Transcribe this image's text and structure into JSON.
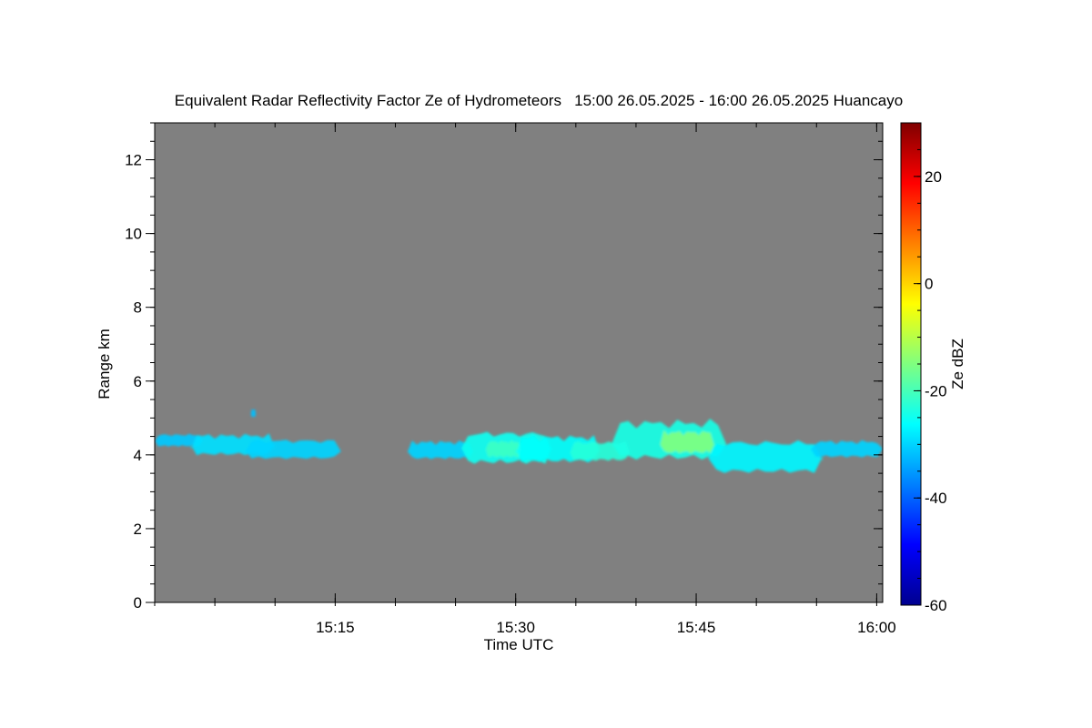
{
  "chart_data": {
    "type": "heatmap",
    "title": "Equivalent Radar Reflectivity Factor Ze of Hydrometeors   15:00 26.05.2025 - 16:00 26.05.2025 Huancayo",
    "xlabel": "Time UTC",
    "ylabel": "Range km",
    "colorbar_label": "Ze dBZ",
    "x_range_minutes": [
      0,
      60.5
    ],
    "x_ticks": [
      {
        "minute": 15,
        "label": "15:15"
      },
      {
        "minute": 30,
        "label": "15:30"
      },
      {
        "minute": 45,
        "label": "15:45"
      },
      {
        "minute": 60,
        "label": "16:00"
      }
    ],
    "ylim": [
      0,
      13
    ],
    "y_ticks": [
      0,
      2,
      4,
      6,
      8,
      10,
      12
    ],
    "clim": [
      -60,
      30
    ],
    "c_ticks": [
      -60,
      -40,
      -20,
      0,
      20
    ],
    "colormap": "jet",
    "background_color": "#808080",
    "echo_layers": [
      {
        "t_start": 0,
        "t_end": 4.0,
        "base_km": 4.2,
        "top_km": 4.65,
        "dbz": -31
      },
      {
        "t_start": 3.0,
        "t_end": 10.0,
        "base_km": 3.95,
        "top_km": 4.7,
        "dbz": -29
      },
      {
        "t_start": 7.5,
        "t_end": 15.5,
        "base_km": 3.85,
        "top_km": 4.55,
        "dbz": -30
      },
      {
        "t_start": 8.0,
        "t_end": 8.4,
        "base_km": 5.0,
        "top_km": 5.3,
        "dbz": -32
      },
      {
        "t_start": 21.0,
        "t_end": 26.5,
        "base_km": 3.85,
        "top_km": 4.5,
        "dbz": -30
      },
      {
        "t_start": 25.5,
        "t_end": 33.0,
        "base_km": 3.7,
        "top_km": 4.85,
        "dbz": -25
      },
      {
        "t_start": 27.5,
        "t_end": 30.5,
        "base_km": 3.9,
        "top_km": 4.5,
        "dbz": -21
      },
      {
        "t_start": 30.0,
        "t_end": 37.0,
        "base_km": 3.75,
        "top_km": 4.7,
        "dbz": -26
      },
      {
        "t_start": 34.5,
        "t_end": 39.5,
        "base_km": 3.8,
        "top_km": 4.5,
        "dbz": -23
      },
      {
        "t_start": 38.0,
        "t_end": 47.5,
        "base_km": 3.8,
        "top_km": 5.2,
        "dbz": -24
      },
      {
        "t_start": 42.0,
        "t_end": 46.5,
        "base_km": 4.0,
        "top_km": 4.8,
        "dbz": -15
      },
      {
        "t_start": 46.0,
        "t_end": 55.5,
        "base_km": 3.45,
        "top_km": 4.6,
        "dbz": -27
      },
      {
        "t_start": 54.5,
        "t_end": 60.5,
        "base_km": 3.9,
        "top_km": 4.5,
        "dbz": -30
      }
    ]
  }
}
